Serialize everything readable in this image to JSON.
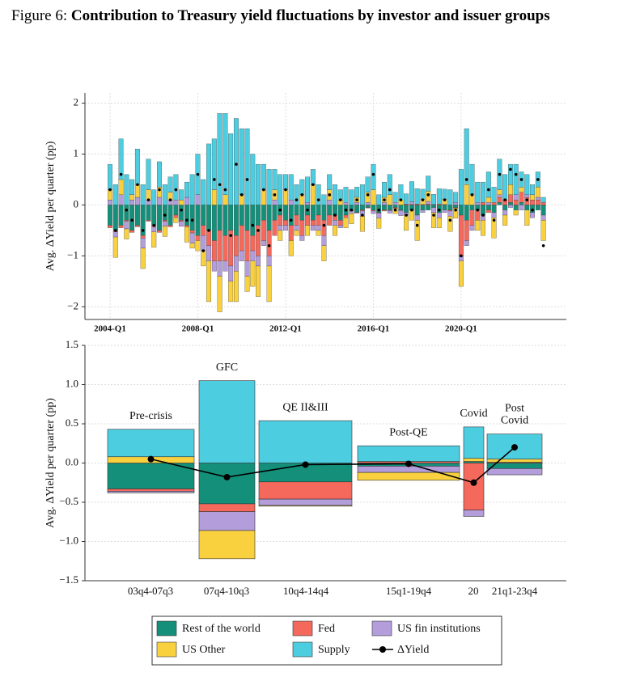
{
  "figure": {
    "label": "Figure 6:",
    "title": "Contribution to Treasury yield fluctuations by investor and issuer groups"
  },
  "chart_data": [
    {
      "type": "bar",
      "stacked": true,
      "ylabel": "Avg. ΔYield per quarter (pp)",
      "grid": true,
      "ylim": [
        -2.25,
        2.2
      ],
      "yticks": [
        {
          "value": -2,
          "label": "−2"
        },
        {
          "value": -1,
          "label": "−1"
        },
        0,
        1,
        2
      ],
      "categories": [
        "2004-Q1",
        null,
        null,
        null,
        null,
        null,
        null,
        null,
        null,
        null,
        null,
        null,
        null,
        null,
        null,
        null,
        "2008-Q1",
        null,
        null,
        null,
        null,
        null,
        null,
        null,
        null,
        null,
        null,
        null,
        null,
        null,
        null,
        null,
        "2012-Q1",
        null,
        null,
        null,
        null,
        null,
        null,
        null,
        null,
        null,
        null,
        null,
        null,
        null,
        null,
        null,
        "2016-Q1",
        null,
        null,
        null,
        null,
        null,
        null,
        null,
        null,
        null,
        null,
        null,
        null,
        null,
        null,
        null,
        "2020-Q1",
        null,
        null,
        null,
        null,
        null,
        null,
        null,
        null,
        null,
        null,
        null,
        null,
        null,
        null,
        null
      ],
      "series": [
        {
          "name": "Rest of the world",
          "color": "#14907a",
          "values": [
            -0.4,
            -0.5,
            -0.4,
            -0.3,
            -0.5,
            -0.4,
            -0.6,
            -0.3,
            -0.4,
            -0.5,
            -0.3,
            -0.4,
            -0.2,
            -0.3,
            -0.4,
            -0.5,
            -0.6,
            -0.4,
            -0.5,
            -0.7,
            -0.5,
            -0.6,
            -0.5,
            -0.6,
            -0.4,
            -0.5,
            -0.6,
            -0.4,
            -0.3,
            -0.5,
            -0.3,
            -0.2,
            -0.3,
            -0.4,
            -0.2,
            -0.3,
            -0.2,
            -0.3,
            -0.2,
            -0.3,
            -0.2,
            -0.2,
            -0.3,
            -0.2,
            -0.1,
            -0.15,
            -0.1,
            -0.05,
            -0.1,
            -0.15,
            -0.1,
            -0.1,
            -0.05,
            -0.1,
            -0.15,
            -0.1,
            -0.2,
            -0.1,
            -0.1,
            -0.05,
            -0.15,
            -0.1,
            -0.1,
            -0.05,
            -0.2,
            -0.3,
            -0.1,
            -0.1,
            -0.2,
            -0.1,
            -0.15,
            0.05,
            -0.1,
            0.05,
            -0.1,
            0.05,
            -0.1,
            -0.15,
            -0.1,
            -0.2
          ]
        },
        {
          "name": "Fed",
          "color": "#f4695c",
          "values": [
            -0.05,
            -0.03,
            -0.05,
            -0.02,
            -0.04,
            -0.03,
            -0.05,
            -0.02,
            -0.03,
            -0.04,
            -0.02,
            -0.03,
            -0.05,
            -0.02,
            -0.03,
            -0.05,
            -0.1,
            -0.2,
            -0.3,
            -0.4,
            -0.6,
            -0.5,
            -0.7,
            -0.4,
            -0.5,
            -0.6,
            -0.3,
            -0.6,
            -0.4,
            -0.5,
            -0.3,
            -0.2,
            -0.1,
            -0.3,
            -0.2,
            -0.3,
            -0.2,
            -0.1,
            -0.2,
            -0.3,
            -0.2,
            -0.1,
            -0.1,
            -0.05,
            -0.02,
            -0.01,
            -0.02,
            -0.01,
            -0.02,
            -0.01,
            -0.02,
            -0.01,
            -0.02,
            -0.01,
            0.02,
            0.01,
            0.02,
            0.01,
            0.02,
            0.01,
            0.02,
            0.01,
            -0.02,
            -0.01,
            -0.8,
            -0.4,
            -0.3,
            -0.2,
            0.05,
            -0.05,
            0.05,
            0.1,
            0.1,
            0.15,
            0.1,
            0.2,
            0.15,
            0.1,
            0.1,
            0.05
          ]
        },
        {
          "name": "US fin institutions",
          "color": "#b39ddb",
          "values": [
            0.1,
            -0.1,
            0.2,
            -0.15,
            0.1,
            0.15,
            -0.2,
            0.1,
            -0.1,
            0.15,
            -0.1,
            0.1,
            0.1,
            -0.1,
            0.15,
            -0.2,
            0.2,
            -0.3,
            -0.3,
            -0.2,
            -0.3,
            -0.2,
            -0.3,
            -0.3,
            -0.2,
            -0.3,
            -0.2,
            -0.2,
            -0.1,
            -0.2,
            0.1,
            -0.1,
            -0.1,
            0.1,
            -0.1,
            -0.1,
            0.05,
            -0.1,
            -0.1,
            -0.2,
            0.1,
            -0.1,
            -0.05,
            0.05,
            -0.05,
            0.05,
            -0.1,
            0.05,
            -0.05,
            -0.1,
            0.05,
            -0.05,
            0.05,
            -0.1,
            -0.05,
            0.05,
            -0.1,
            -0.05,
            0.05,
            -0.1,
            -0.1,
            -0.05,
            -0.1,
            0.05,
            -0.1,
            -0.1,
            -0.1,
            0.05,
            -0.1,
            0.05,
            -0.1,
            0.05,
            -0.1,
            -0.05,
            0.1,
            -0.1,
            0.05,
            -0.1,
            0.05,
            -0.1
          ]
        },
        {
          "name": "US Other",
          "color": "#f9d13e",
          "values": [
            0.2,
            -0.4,
            0.3,
            -0.2,
            0.1,
            0.25,
            -0.4,
            0.2,
            -0.3,
            0.2,
            -0.2,
            0.15,
            -0.1,
            0.1,
            -0.3,
            -0.1,
            -0.2,
            -0.3,
            -0.8,
            0.3,
            -0.7,
            0.2,
            -0.4,
            -0.6,
            0.2,
            -0.3,
            -0.5,
            -0.6,
            0.3,
            -0.7,
            0.2,
            -0.2,
            0.3,
            -0.3,
            -0.1,
            0.2,
            -0.2,
            0.4,
            -0.1,
            -0.3,
            0.2,
            -0.2,
            0.1,
            -0.2,
            -0.2,
            0.1,
            -0.3,
            0.2,
            0.3,
            -0.2,
            0.1,
            0.2,
            -0.1,
            0.1,
            -0.3,
            -0.2,
            -0.4,
            0.1,
            0.2,
            -0.3,
            -0.2,
            0.1,
            -0.3,
            -0.2,
            -0.5,
            0.4,
            0.2,
            -0.2,
            -0.3,
            0.1,
            -0.4,
            0.1,
            -0.2,
            0.2,
            -0.1,
            0.1,
            -0.3,
            0.1,
            0.2,
            -0.4
          ]
        },
        {
          "name": "Supply",
          "color": "#4dcde0",
          "values": [
            0.5,
            0.4,
            0.8,
            0.6,
            0.3,
            0.7,
            0.4,
            0.6,
            0.3,
            0.5,
            0.4,
            0.3,
            0.5,
            0.2,
            0.3,
            0.6,
            0.8,
            0.5,
            1.2,
            1.0,
            1.8,
            1.6,
            1.4,
            1.7,
            1.3,
            1.5,
            1.0,
            0.8,
            0.5,
            0.7,
            0.4,
            0.6,
            0.3,
            0.5,
            0.4,
            0.3,
            0.5,
            0.3,
            0.4,
            0.2,
            0.3,
            0.4,
            0.2,
            0.3,
            0.3,
            0.2,
            0.4,
            0.3,
            0.5,
            0.2,
            0.3,
            0.4,
            0.2,
            0.3,
            0.2,
            0.4,
            0.3,
            0.2,
            0.3,
            0.2,
            0.3,
            0.2,
            0.3,
            0.2,
            0.7,
            1.1,
            0.6,
            0.4,
            0.4,
            0.5,
            0.3,
            0.6,
            0.5,
            0.4,
            0.6,
            0.3,
            0.4,
            0.2,
            0.3,
            0.1
          ]
        },
        {
          "name": "ΔYield",
          "color": "#000000",
          "type": "scatter",
          "values": [
            0.3,
            -0.5,
            0.6,
            -0.1,
            -0.3,
            0.4,
            -0.5,
            0.1,
            -0.4,
            0.3,
            -0.2,
            0.1,
            0.3,
            -0.1,
            -0.3,
            -0.3,
            0.6,
            -0.9,
            -0.5,
            0.5,
            0.4,
            0.3,
            -0.6,
            0.8,
            0.2,
            0.5,
            -0.4,
            -0.5,
            0.3,
            -0.8,
            0.2,
            -0.1,
            0.3,
            -0.3,
            0.1,
            0.2,
            -0.1,
            0.4,
            0.1,
            -0.4,
            0.2,
            -0.2,
            0.1,
            -0.1,
            -0.1,
            0.1,
            -0.2,
            0.2,
            0.6,
            -0.1,
            0.1,
            0.3,
            -0.1,
            0.1,
            -0.2,
            -0.1,
            -0.4,
            0.1,
            0.2,
            -0.2,
            -0.1,
            0.1,
            -0.3,
            -0.1,
            -1.0,
            0.5,
            0.2,
            -0.1,
            -0.2,
            0.3,
            -0.3,
            0.6,
            0.1,
            0.7,
            0.6,
            0.5,
            0.1,
            -0.1,
            0.5,
            -0.8
          ]
        }
      ]
    },
    {
      "type": "bar",
      "stacked": true,
      "ylabel": "Avg. ΔYield per quarter (pp)",
      "grid": true,
      "ylim": [
        -1.5,
        1.5
      ],
      "yticks": [
        {
          "value": -1.5,
          "label": "−1.5"
        },
        {
          "value": -1.0,
          "label": "−1.0"
        },
        {
          "value": -0.5,
          "label": "−0.5"
        },
        {
          "value": 0,
          "label": "0.0"
        },
        {
          "value": 0.5,
          "label": "0.5"
        },
        {
          "value": 1.0,
          "label": "1.0"
        },
        {
          "value": 1.5,
          "label": "1.5"
        }
      ],
      "categories": [
        "03q4-07q3",
        "07q4-10q3",
        "10q4-14q4",
        "15q1-19q4",
        "20",
        "21q1-23q4"
      ],
      "annotations": [
        "Pre-crisis",
        "GFC",
        "QE II&III",
        "Post-QE",
        "Covid",
        "Post Covid"
      ],
      "series": [
        {
          "name": "Rest of the world",
          "color": "#14907a",
          "values": [
            -0.33,
            -0.52,
            -0.24,
            -0.04,
            0.02,
            -0.07
          ]
        },
        {
          "name": "Fed",
          "color": "#f4695c",
          "values": [
            -0.03,
            -0.1,
            -0.22,
            0.02,
            -0.6,
            0.01
          ]
        },
        {
          "name": "US fin institutions",
          "color": "#b39ddb",
          "values": [
            -0.02,
            -0.24,
            -0.08,
            -0.08,
            -0.08,
            -0.08
          ]
        },
        {
          "name": "US Other",
          "color": "#f9d13e",
          "values": [
            0.08,
            -0.36,
            -0.01,
            -0.1,
            0.04,
            0.04
          ]
        },
        {
          "name": "Supply",
          "color": "#4dcde0",
          "values": [
            0.35,
            1.05,
            0.54,
            0.2,
            0.4,
            0.32
          ]
        },
        {
          "name": "ΔYield",
          "color": "#000000",
          "type": "line",
          "values": [
            0.05,
            -0.18,
            -0.02,
            -0.01,
            -0.25,
            0.2
          ]
        }
      ]
    }
  ]
}
